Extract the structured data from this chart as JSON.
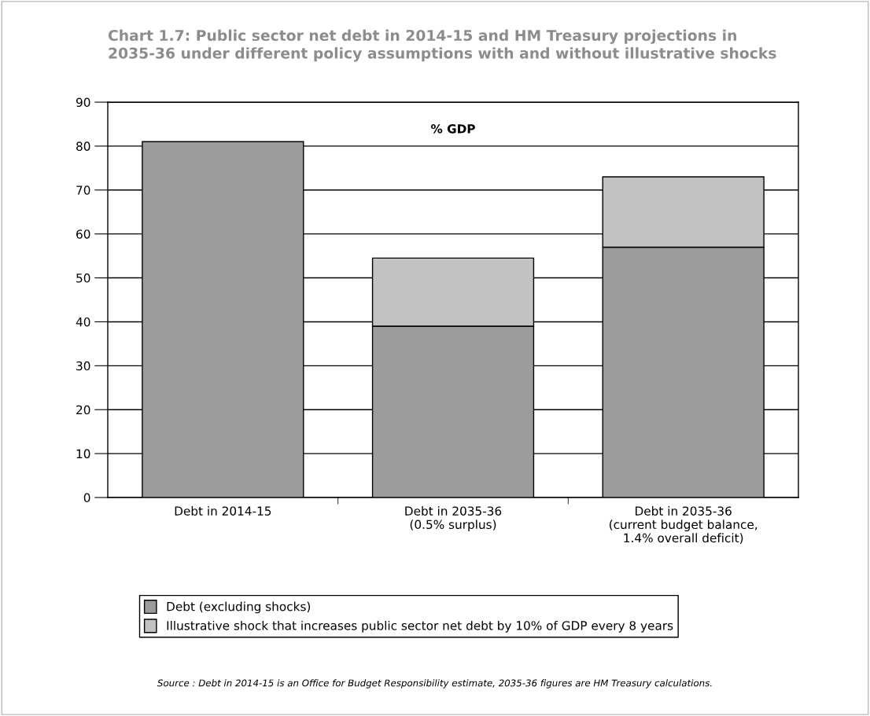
{
  "chart_data": {
    "type": "bar",
    "title": "Chart 1.7: Public sector net debt in 2014-15 and HM Treasury projections in\n2035-36 under different policy assumptions with and without illustrative shocks",
    "categories": [
      "Debt in 2014-15",
      "Debt in 2035-36\n(0.5% surplus)",
      "Debt in 2035-36\n(current budget balance,\n1.4% overall deficit)"
    ],
    "series": [
      {
        "name": "Debt (excluding shocks)",
        "color": "#9c9c9c",
        "values": [
          81,
          39,
          57
        ]
      },
      {
        "name": "Illustrative shock that increases public sector net debt by 10% of GDP every 8 years",
        "color": "#c2c2c2",
        "values": [
          null,
          15.5,
          16
        ]
      }
    ],
    "stacked": true,
    "ylim": [
      0,
      90
    ],
    "yticks": [
      0,
      10,
      20,
      30,
      40,
      50,
      60,
      70,
      80,
      90
    ],
    "grid": "y",
    "legend": "bottom",
    "annotations": [
      "% GDP",
      "Source : Debt in 2014-15 is an Office for Budget Responsibility estimate, 2035-36 figures are HM Treasury calculations."
    ]
  }
}
